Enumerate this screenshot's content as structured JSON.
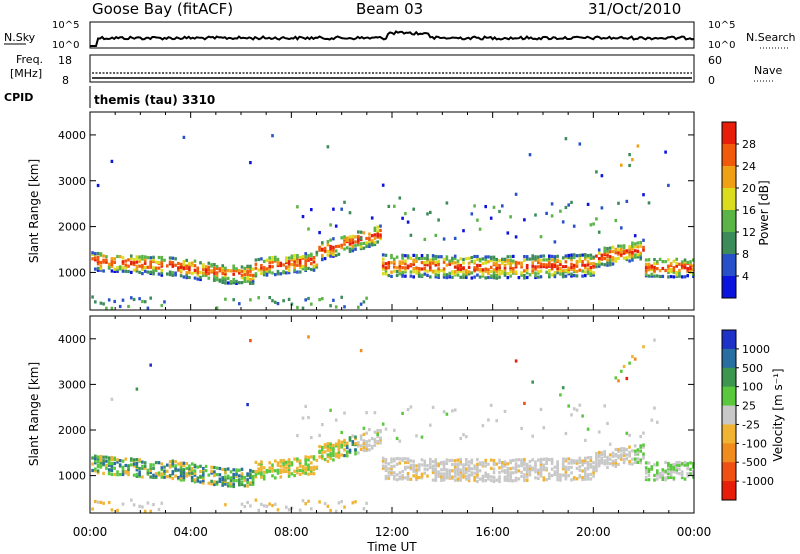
{
  "header": {
    "station": "Goose Bay (fitACF)",
    "beam": "Beam 03",
    "date": "31/Oct/2010"
  },
  "noise_panel": {
    "left_label": "N.Sky",
    "left_ticks": [
      "10^5",
      "10^0"
    ],
    "right_label": "N.Search",
    "right_ticks": [
      "10^5",
      "10^0"
    ]
  },
  "freq_panel": {
    "left_label_1": "Freq.",
    "left_label_2": "[MHz]",
    "left_ticks": [
      "18",
      "8"
    ],
    "right_label": "Nave",
    "right_ticks": [
      "60",
      "0"
    ],
    "cpid_label": "CPID",
    "cpid_value": "themis (tau) 3310"
  },
  "chart_data": [
    {
      "type": "heatmap",
      "name": "Power",
      "ylabel": "Slant Range [km]",
      "xlabel": "Time UT",
      "x_ticks": [
        "00:00",
        "04:00",
        "08:00",
        "12:00",
        "16:00",
        "20:00",
        "00:00"
      ],
      "x_range_hours": [
        0,
        24
      ],
      "y_range_km": [
        180,
        4500
      ],
      "y_ticks": [
        1000,
        2000,
        3000,
        4000
      ],
      "colorbar": {
        "label": "Power [dB]",
        "ticks": [
          "4",
          "8",
          "12",
          "16",
          "20",
          "24",
          "28"
        ],
        "colors": [
          "#0a14dc",
          "#2850c8",
          "#3c8c5a",
          "#5ab446",
          "#dcdc1e",
          "#f0a014",
          "#f05a0a",
          "#e61e0a"
        ]
      }
    },
    {
      "type": "heatmap",
      "name": "Velocity",
      "ylabel": "Slant Range [km]",
      "xlabel": "Time UT",
      "x_ticks": [
        "00:00",
        "04:00",
        "08:00",
        "12:00",
        "16:00",
        "20:00",
        "00:00"
      ],
      "x_range_hours": [
        0,
        24
      ],
      "y_range_km": [
        180,
        4500
      ],
      "y_ticks": [
        1000,
        2000,
        3000,
        4000
      ],
      "colorbar": {
        "label": "Velocity [m s⁻¹]",
        "ticks": [
          "1000",
          "500",
          "100",
          "25",
          "-25",
          "-100",
          "-500",
          "-1000"
        ],
        "colors": [
          "#1e32c8",
          "#286ea0",
          "#3c9650",
          "#5ac83c",
          "#c8c8c8",
          "#f0b432",
          "#f08c1e",
          "#f05014",
          "#e61e0a"
        ]
      }
    }
  ]
}
